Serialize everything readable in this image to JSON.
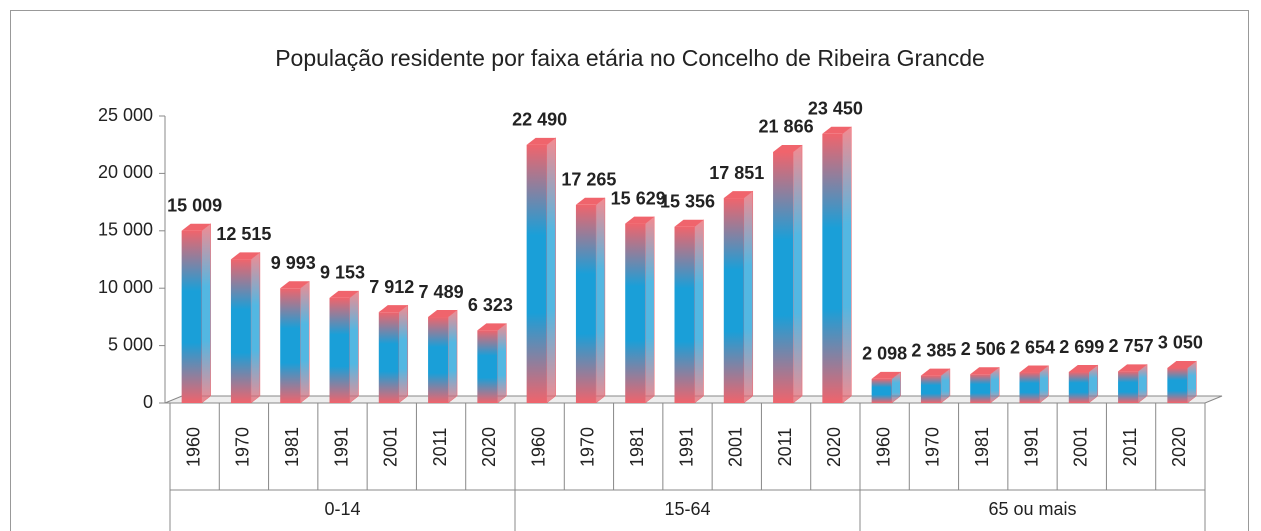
{
  "chart_data": {
    "type": "bar",
    "title": "População residente por faixa etária no Concelho de Ribeira Grancde",
    "groups": [
      {
        "label": "0-14",
        "categories": [
          "1960",
          "1970",
          "1981",
          "1991",
          "2001",
          "2011",
          "2020"
        ],
        "values": [
          15009,
          12515,
          9993,
          9153,
          7912,
          7489,
          6323
        ],
        "value_labels": [
          "15 009",
          "12 515",
          "9 993",
          "9 153",
          "7 912",
          "7 489",
          "6 323"
        ]
      },
      {
        "label": "15-64",
        "categories": [
          "1960",
          "1970",
          "1981",
          "1991",
          "2001",
          "2011",
          "2020"
        ],
        "values": [
          22490,
          17265,
          15629,
          15356,
          17851,
          21866,
          23450
        ],
        "value_labels": [
          "22 490",
          "17 265",
          "15 629",
          "15 356",
          "17 851",
          "21 866",
          "23 450"
        ]
      },
      {
        "label": "65 ou mais",
        "categories": [
          "1960",
          "1970",
          "1981",
          "1991",
          "2001",
          "2011",
          "2020"
        ],
        "values": [
          2098,
          2385,
          2506,
          2654,
          2699,
          2757,
          3050
        ],
        "value_labels": [
          "2 098",
          "2 385",
          "2 506",
          "2 654",
          "2 699",
          "2 757",
          "3 050"
        ]
      }
    ],
    "ylim": [
      0,
      25000
    ],
    "yticks": [
      0,
      {
        "value": 5000,
        "label": "5 000"
      },
      {
        "value": 10000,
        "label": "10 000"
      },
      {
        "value": 15000,
        "label": "15 000"
      },
      {
        "value": 20000,
        "label": "20 000"
      },
      {
        "value": 25000,
        "label": "25 000"
      }
    ],
    "colors": [
      "#f0646c",
      "#1a9fd8"
    ]
  }
}
